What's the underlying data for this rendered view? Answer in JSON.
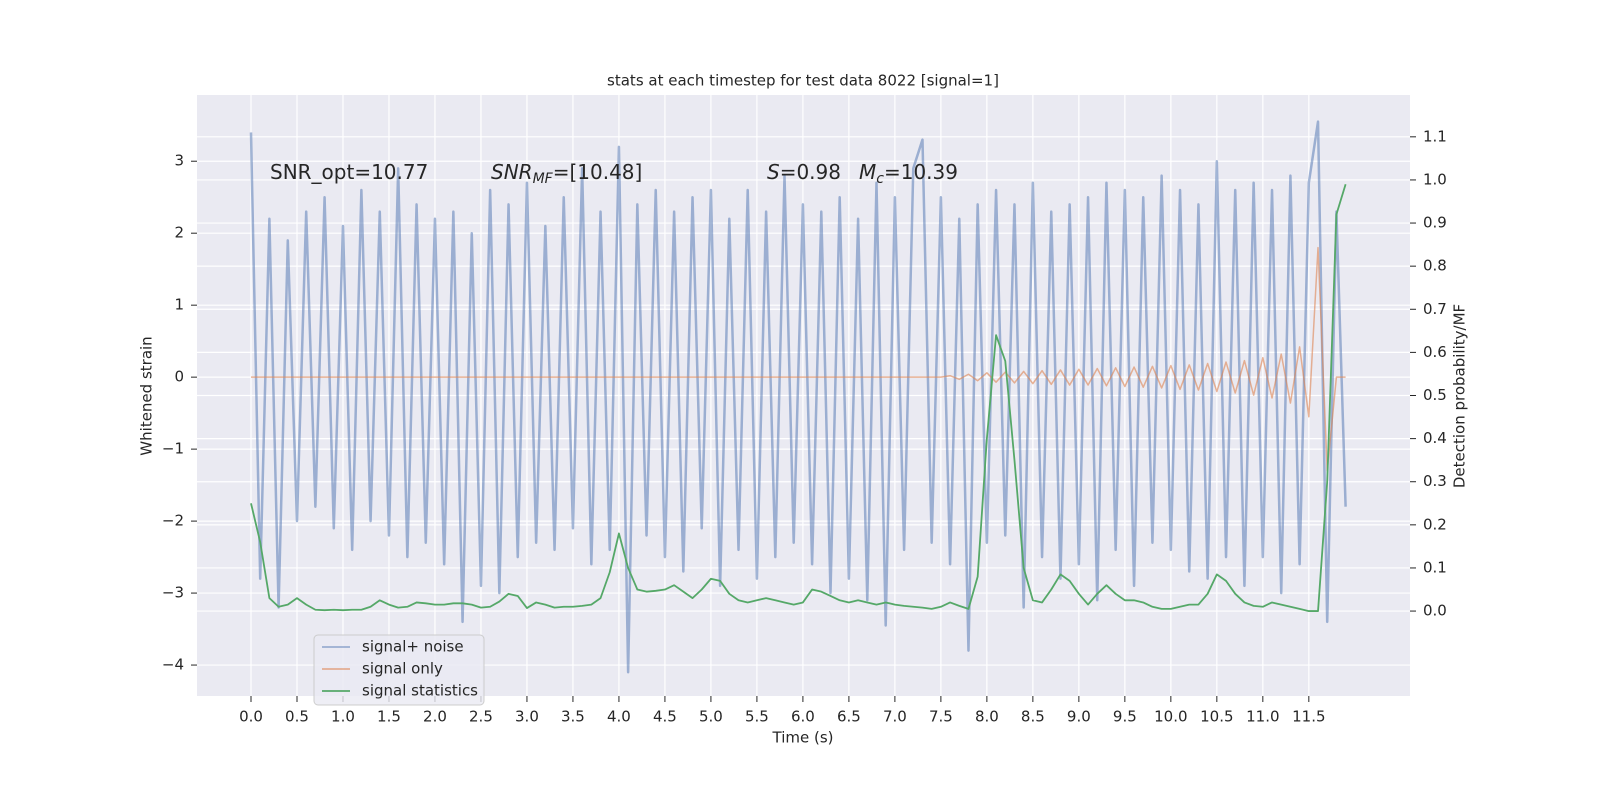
{
  "chart_data": {
    "type": "line",
    "title": "stats at each timestep for test data 8022 [signal=1]",
    "xlabel": "Time (s)",
    "ylabel": "Whitened strain",
    "y2label": "Detection probability/MF",
    "annotations": [
      {
        "text": "SNR_opt=10.77"
      },
      {
        "main": "SNR",
        "sub": "MF",
        "rest": "=[10.48]"
      },
      {
        "main": "S",
        "rest": "=0.98"
      },
      {
        "main": "M",
        "sub": "c",
        "rest": "=10.39"
      }
    ],
    "legend": "lower left",
    "grid": true,
    "xlim": [
      -0.587,
      12.6
    ],
    "ylim": [
      -4.43,
      3.92
    ],
    "y2lim": [
      -0.197,
      1.197
    ],
    "xticks": [
      {
        "value": 0,
        "label": "0.0"
      },
      0.5,
      {
        "value": 1,
        "label": "1.0"
      },
      1.5,
      {
        "value": 2,
        "label": "2.0"
      },
      2.5,
      {
        "value": 3,
        "label": "3.0"
      },
      3.5,
      {
        "value": 4,
        "label": "4.0"
      },
      4.5,
      {
        "value": 5,
        "label": "5.0"
      },
      5.5,
      {
        "value": 6,
        "label": "6.0"
      },
      6.5,
      {
        "value": 7,
        "label": "7.0"
      },
      7.5,
      {
        "value": 8,
        "label": "8.0"
      },
      8.5,
      {
        "value": 9,
        "label": "9.0"
      },
      9.5,
      {
        "value": 10,
        "label": "10.0"
      },
      10.5,
      {
        "value": 11,
        "label": "11.0"
      },
      11.5
    ],
    "yticks": [
      {
        "value": -4,
        "label": "−4"
      },
      {
        "value": -3,
        "label": "−3"
      },
      {
        "value": -2,
        "label": "−2"
      },
      {
        "value": -1,
        "label": "−1"
      },
      0,
      1,
      2,
      3
    ],
    "y2ticks": [
      {
        "value": 0,
        "label": "0.0"
      },
      0.1,
      0.2,
      0.3,
      0.4,
      0.5,
      0.6,
      0.7,
      0.8,
      0.9,
      {
        "value": 1,
        "label": "1.0"
      },
      1.1
    ],
    "x": [
      0,
      0.1,
      0.2,
      0.3,
      0.4,
      0.5,
      0.6,
      0.7,
      0.8,
      0.9,
      1,
      1.1,
      1.2,
      1.3,
      1.4,
      1.5,
      1.6,
      1.7,
      1.8,
      1.9,
      2,
      2.1,
      2.2,
      2.3,
      2.4,
      2.5,
      2.6,
      2.7,
      2.8,
      2.9,
      3,
      3.1,
      3.2,
      3.3,
      3.4,
      3.5,
      3.6,
      3.7,
      3.8,
      3.9,
      4,
      4.1,
      4.2,
      4.3,
      4.4,
      4.5,
      4.6,
      4.7,
      4.8,
      4.9,
      5,
      5.1,
      5.2,
      5.3,
      5.4,
      5.5,
      5.6,
      5.7,
      5.8,
      5.9,
      6,
      6.1,
      6.2,
      6.3,
      6.4,
      6.5,
      6.6,
      6.7,
      6.8,
      6.9,
      7,
      7.1,
      7.2,
      7.3,
      7.4,
      7.5,
      7.6,
      7.7,
      7.8,
      7.9,
      8,
      8.1,
      8.2,
      8.3,
      8.4,
      8.5,
      8.6,
      8.7,
      8.8,
      8.9,
      9,
      9.1,
      9.2,
      9.3,
      9.4,
      9.5,
      9.6,
      9.7,
      9.8,
      9.9,
      10,
      10.1,
      10.2,
      10.3,
      10.4,
      10.5,
      10.6,
      10.7,
      10.8,
      10.9,
      11,
      11.1,
      11.2,
      11.3,
      11.4,
      11.5,
      11.6,
      11.7,
      11.8,
      11.9
    ],
    "series": [
      {
        "name": "signal+ noise",
        "color": "#4c72b0",
        "values": [
          3.4,
          -2.8,
          2.2,
          -3.2,
          1.9,
          -2.0,
          2.3,
          -1.8,
          2.5,
          -2.1,
          2.1,
          -2.4,
          2.6,
          -2.0,
          2.3,
          -2.2,
          2.9,
          -2.5,
          2.4,
          -2.3,
          2.2,
          -2.6,
          2.3,
          -3.4,
          2.0,
          -2.9,
          2.6,
          -3.0,
          2.4,
          -2.5,
          2.7,
          -2.3,
          2.1,
          -2.4,
          2.5,
          -2.1,
          2.9,
          -2.6,
          2.3,
          -2.4,
          3.2,
          -4.1,
          2.4,
          -2.2,
          2.6,
          -2.5,
          2.3,
          -2.7,
          2.5,
          -2.1,
          2.6,
          -2.9,
          2.2,
          -2.4,
          2.6,
          -2.8,
          2.3,
          -2.5,
          2.8,
          -2.3,
          2.4,
          -2.6,
          2.3,
          -3.0,
          2.5,
          -2.8,
          2.2,
          -3.1,
          2.7,
          -3.45,
          2.5,
          -2.4,
          2.9,
          3.3,
          -2.3,
          2.5,
          -2.6,
          2.2,
          -3.8,
          2.4,
          -2.3,
          2.6,
          -2.2,
          2.4,
          -3.2,
          2.7,
          -2.5,
          2.3,
          -2.8,
          2.4,
          -2.6,
          2.5,
          -3.1,
          2.7,
          -2.4,
          2.6,
          -2.9,
          2.5,
          -2.3,
          2.8,
          -2.4,
          2.6,
          -2.7,
          2.4,
          -2.8,
          3.0,
          -2.5,
          2.6,
          -2.9,
          2.7,
          -2.5,
          2.6,
          -3.0,
          2.8,
          -2.6,
          2.7,
          3.55,
          -3.4,
          2.3,
          -1.8
        ]
      },
      {
        "name": "signal only",
        "color": "#dd8452",
        "values": [
          0,
          0,
          0,
          0,
          0,
          0,
          0,
          0,
          0,
          0,
          0,
          0,
          0,
          0,
          0,
          0,
          0,
          0,
          0,
          0,
          0,
          0,
          0,
          0,
          0,
          0,
          0,
          0,
          0,
          0,
          0,
          0,
          0,
          0,
          0,
          0,
          0,
          0,
          0,
          0,
          0,
          0,
          0,
          0,
          0,
          0,
          0,
          0,
          0,
          0,
          0,
          0,
          0,
          0,
          0,
          0,
          0,
          0,
          0,
          0,
          0,
          0,
          0,
          0,
          0,
          0,
          0,
          0,
          0,
          0,
          0,
          0,
          0,
          0,
          0,
          0,
          0.02,
          -0.03,
          0.04,
          -0.05,
          0.06,
          -0.07,
          0.07,
          -0.08,
          0.08,
          -0.09,
          0.09,
          -0.1,
          0.1,
          -0.11,
          0.11,
          -0.11,
          0.12,
          -0.12,
          0.13,
          -0.13,
          0.14,
          -0.14,
          0.15,
          -0.15,
          0.16,
          -0.17,
          0.17,
          -0.18,
          0.19,
          -0.2,
          0.21,
          -0.22,
          0.23,
          -0.25,
          0.27,
          -0.29,
          0.32,
          -0.36,
          0.42,
          -0.55,
          1.8,
          -1.3,
          0,
          0
        ]
      },
      {
        "name": "signal statistics",
        "color": "#55a868",
        "axis": "y2",
        "values": [
          0.25,
          0.16,
          0.03,
          0.01,
          0.015,
          0.03,
          0.015,
          0.003,
          0.002,
          0.003,
          0.002,
          0.003,
          0.003,
          0.01,
          0.025,
          0.015,
          0.008,
          0.01,
          0.02,
          0.018,
          0.015,
          0.015,
          0.018,
          0.018,
          0.015,
          0.008,
          0.01,
          0.022,
          0.04,
          0.035,
          0.007,
          0.02,
          0.015,
          0.008,
          0.01,
          0.01,
          0.012,
          0.015,
          0.03,
          0.09,
          0.18,
          0.1,
          0.05,
          0.045,
          0.047,
          0.05,
          0.06,
          0.045,
          0.03,
          0.05,
          0.075,
          0.07,
          0.04,
          0.025,
          0.02,
          0.025,
          0.03,
          0.025,
          0.02,
          0.015,
          0.02,
          0.05,
          0.045,
          0.035,
          0.025,
          0.02,
          0.025,
          0.02,
          0.015,
          0.02,
          0.015,
          0.012,
          0.01,
          0.008,
          0.005,
          0.01,
          0.02,
          0.012,
          0.005,
          0.08,
          0.4,
          0.64,
          0.58,
          0.35,
          0.1,
          0.025,
          0.02,
          0.05,
          0.085,
          0.07,
          0.04,
          0.015,
          0.04,
          0.06,
          0.04,
          0.025,
          0.025,
          0.02,
          0.01,
          0.005,
          0.005,
          0.01,
          0.015,
          0.015,
          0.04,
          0.085,
          0.07,
          0.04,
          0.02,
          0.012,
          0.01,
          0.02,
          0.015,
          0.01,
          0.005,
          0,
          0,
          0.3,
          0.92,
          0.99
        ]
      }
    ]
  }
}
